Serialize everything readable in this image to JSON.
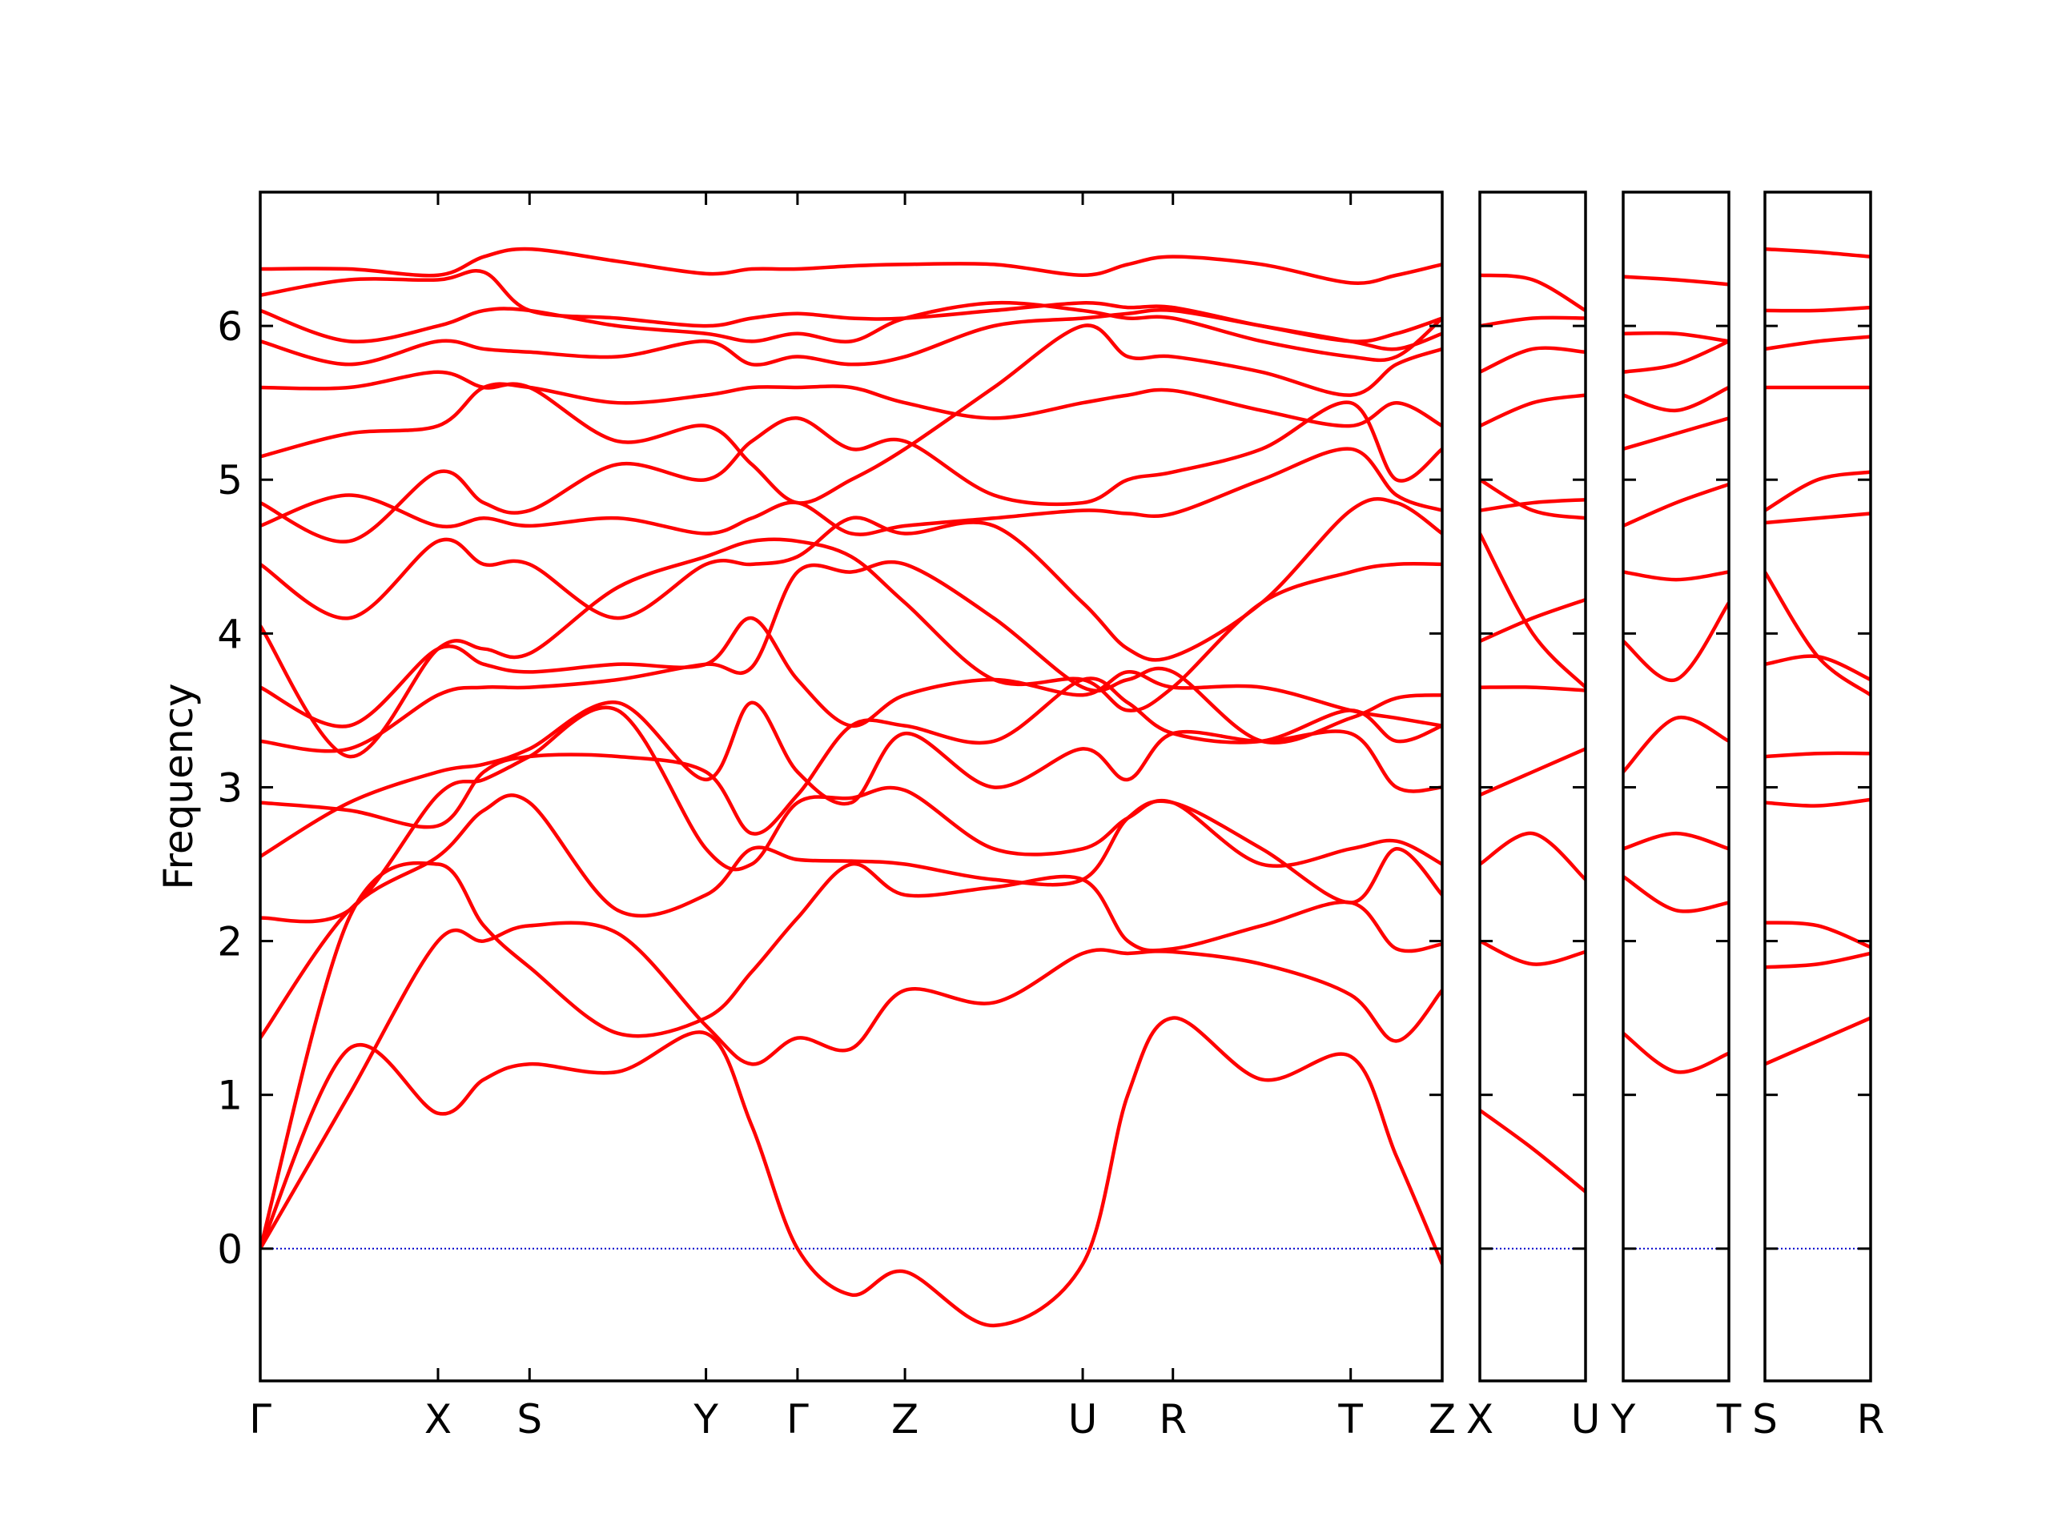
{
  "chart_data": [
    {
      "type": "line",
      "y_label": "Frequency",
      "ylim": [
        -0.86,
        6.87
      ],
      "yticks": [
        0,
        1,
        2,
        3,
        4,
        5,
        6
      ],
      "show_ytick_labels": true,
      "zero_line": 0,
      "zero_line_color": "#0000cc",
      "color": "#ff0000",
      "xlim": [
        0,
        8.91
      ],
      "xticks": [
        {
          "value": 0,
          "label": "Γ"
        },
        {
          "value": 1.34,
          "label": "X"
        },
        {
          "value": 2.03,
          "label": "S"
        },
        {
          "value": 3.36,
          "label": "Y"
        },
        {
          "value": 4.05,
          "label": "Γ"
        },
        {
          "value": 4.86,
          "label": "Z"
        },
        {
          "value": 6.2,
          "label": "U"
        },
        {
          "value": 6.88,
          "label": "R"
        },
        {
          "value": 8.22,
          "label": "T"
        },
        {
          "value": 8.91,
          "label": "Z"
        }
      ],
      "x": [
        0,
        0.67,
        1.34,
        1.685,
        2.03,
        2.695,
        3.36,
        3.705,
        4.05,
        4.455,
        4.86,
        5.53,
        6.2,
        6.54,
        6.88,
        7.55,
        8.22,
        8.565,
        8.91
      ],
      "series": [
        {
          "values": [
            0,
            1.3,
            0.88,
            1.1,
            1.2,
            1.15,
            1.4,
            0.8,
            0,
            -0.3,
            -0.15,
            -0.5,
            -0.1,
            1.0,
            1.5,
            1.1,
            1.25,
            0.6,
            -0.1
          ]
        },
        {
          "values": [
            0,
            1.0,
            2.0,
            2.0,
            2.1,
            2.05,
            1.45,
            1.2,
            1.37,
            1.3,
            1.68,
            1.6,
            1.92,
            1.92,
            1.93,
            1.85,
            1.65,
            1.35,
            1.68
          ]
        },
        {
          "values": [
            0,
            2.15,
            2.5,
            2.1,
            1.83,
            1.4,
            1.5,
            1.8,
            2.15,
            2.5,
            2.3,
            2.35,
            2.4,
            2.0,
            1.95,
            2.1,
            2.25,
            1.95,
            1.98
          ]
        },
        {
          "values": [
            1.37,
            2.2,
            2.55,
            2.85,
            2.9,
            2.2,
            2.3,
            2.6,
            2.53,
            2.52,
            2.5,
            2.4,
            2.4,
            2.8,
            2.9,
            2.6,
            2.25,
            2.6,
            2.3
          ]
        },
        {
          "values": [
            2.15,
            2.2,
            2.95,
            3.05,
            3.2,
            3.5,
            2.6,
            2.5,
            2.9,
            2.93,
            2.98,
            2.6,
            2.6,
            2.8,
            2.9,
            2.5,
            2.6,
            2.65,
            2.5
          ]
        },
        {
          "values": [
            2.55,
            2.9,
            3.1,
            3.15,
            3.25,
            3.55,
            3.05,
            3.55,
            3.1,
            2.9,
            3.35,
            3.0,
            3.25,
            3.05,
            3.35,
            3.3,
            3.35,
            3.0,
            3.0
          ]
        },
        {
          "values": [
            2.9,
            2.85,
            2.75,
            3.1,
            3.2,
            3.2,
            3.1,
            2.7,
            2.95,
            3.4,
            3.4,
            3.3,
            3.7,
            3.55,
            3.35,
            3.3,
            3.5,
            3.3,
            3.4
          ]
        },
        {
          "values": [
            3.3,
            3.25,
            3.6,
            3.65,
            3.65,
            3.7,
            3.8,
            3.78,
            4.4,
            4.4,
            4.45,
            4.1,
            3.65,
            3.7,
            3.75,
            3.3,
            3.45,
            3.58,
            3.6
          ]
        },
        {
          "values": [
            3.65,
            3.4,
            3.9,
            3.8,
            3.75,
            3.8,
            3.8,
            4.1,
            3.7,
            3.4,
            3.6,
            3.7,
            3.6,
            3.75,
            3.65,
            3.65,
            3.5,
            3.45,
            3.4
          ]
        },
        {
          "values": [
            4.05,
            3.2,
            3.9,
            3.9,
            3.87,
            4.3,
            4.5,
            4.6,
            4.6,
            4.5,
            4.2,
            3.7,
            3.7,
            3.5,
            3.65,
            4.2,
            4.4,
            4.45,
            4.45
          ]
        },
        {
          "values": [
            4.45,
            4.1,
            4.6,
            4.45,
            4.45,
            4.1,
            4.45,
            4.45,
            4.5,
            4.75,
            4.65,
            4.7,
            4.2,
            3.9,
            3.85,
            4.2,
            4.8,
            4.85,
            4.65
          ]
        },
        {
          "values": [
            4.7,
            4.9,
            4.7,
            4.75,
            4.7,
            4.75,
            4.65,
            4.75,
            4.85,
            4.65,
            4.7,
            4.75,
            4.8,
            4.78,
            4.78,
            5.0,
            5.2,
            4.9,
            4.8
          ]
        },
        {
          "values": [
            4.85,
            4.6,
            5.05,
            4.85,
            4.8,
            5.1,
            5.0,
            5.25,
            5.4,
            5.2,
            5.25,
            4.9,
            4.85,
            5.0,
            5.05,
            5.2,
            5.5,
            5.0,
            5.2
          ]
        },
        {
          "values": [
            5.15,
            5.3,
            5.35,
            5.6,
            5.6,
            5.5,
            5.55,
            5.6,
            5.6,
            5.6,
            5.5,
            5.4,
            5.5,
            5.55,
            5.58,
            5.45,
            5.35,
            5.5,
            5.35
          ]
        },
        {
          "values": [
            5.6,
            5.6,
            5.7,
            5.6,
            5.6,
            5.25,
            5.35,
            5.1,
            4.85,
            5.0,
            5.2,
            5.6,
            6.0,
            5.8,
            5.8,
            5.7,
            5.55,
            5.75,
            5.85
          ]
        },
        {
          "values": [
            5.9,
            5.75,
            5.9,
            5.85,
            5.83,
            5.8,
            5.9,
            5.75,
            5.8,
            5.75,
            5.8,
            6.0,
            6.05,
            6.08,
            6.1,
            6.0,
            5.9,
            5.85,
            5.95
          ]
        },
        {
          "values": [
            6.1,
            5.9,
            6.0,
            6.1,
            6.1,
            6.0,
            5.95,
            5.9,
            5.95,
            5.9,
            6.05,
            6.15,
            6.1,
            6.05,
            6.05,
            5.9,
            5.8,
            5.8,
            6.05
          ]
        },
        {
          "values": [
            6.2,
            6.3,
            6.3,
            6.35,
            6.1,
            6.05,
            6.0,
            6.05,
            6.08,
            6.05,
            6.05,
            6.1,
            6.15,
            6.12,
            6.12,
            6.0,
            5.9,
            5.95,
            6.05
          ]
        },
        {
          "values": [
            6.37,
            6.37,
            6.33,
            6.45,
            6.5,
            6.42,
            6.34,
            6.37,
            6.37,
            6.39,
            6.4,
            6.4,
            6.33,
            6.4,
            6.45,
            6.4,
            6.28,
            6.33,
            6.4
          ]
        }
      ]
    },
    {
      "type": "line",
      "ylim": [
        -0.86,
        6.87
      ],
      "yticks": [
        0,
        1,
        2,
        3,
        4,
        5,
        6
      ],
      "show_ytick_labels": false,
      "zero_line": 0,
      "zero_line_color": "#0000cc",
      "color": "#ff0000",
      "xlim": [
        0,
        0.8
      ],
      "xticks": [
        {
          "value": 0,
          "label": "X"
        },
        {
          "value": 0.8,
          "label": "U"
        }
      ],
      "x": [
        0,
        0.4,
        0.8
      ],
      "series": [
        {
          "values": [
            0.9,
            0.65,
            0.37
          ]
        },
        {
          "values": [
            2.0,
            1.85,
            1.93
          ]
        },
        {
          "values": [
            2.5,
            2.7,
            2.4
          ]
        },
        {
          "values": [
            2.95,
            3.1,
            3.25
          ]
        },
        {
          "values": [
            3.65,
            3.65,
            3.63
          ]
        },
        {
          "values": [
            3.95,
            4.1,
            4.22
          ]
        },
        {
          "values": [
            4.65,
            4.0,
            3.65
          ]
        },
        {
          "values": [
            4.8,
            4.85,
            4.87
          ]
        },
        {
          "values": [
            5.0,
            4.8,
            4.75
          ]
        },
        {
          "values": [
            5.35,
            5.5,
            5.55
          ]
        },
        {
          "values": [
            5.7,
            5.85,
            5.83
          ]
        },
        {
          "values": [
            6.0,
            6.05,
            6.05
          ]
        },
        {
          "values": [
            6.33,
            6.3,
            6.1
          ]
        }
      ]
    },
    {
      "type": "line",
      "ylim": [
        -0.86,
        6.87
      ],
      "yticks": [
        0,
        1,
        2,
        3,
        4,
        5,
        6
      ],
      "show_ytick_labels": false,
      "zero_line": 0,
      "zero_line_color": "#0000cc",
      "color": "#ff0000",
      "xlim": [
        0,
        0.8
      ],
      "xticks": [
        {
          "value": 0,
          "label": "Y"
        },
        {
          "value": 0.8,
          "label": "T"
        }
      ],
      "x": [
        0,
        0.4,
        0.8
      ],
      "series": [
        {
          "values": [
            1.4,
            1.15,
            1.27
          ]
        },
        {
          "values": [
            2.42,
            2.2,
            2.25
          ]
        },
        {
          "values": [
            2.6,
            2.7,
            2.6
          ]
        },
        {
          "values": [
            3.1,
            3.45,
            3.3
          ]
        },
        {
          "values": [
            3.95,
            3.7,
            4.2
          ]
        },
        {
          "values": [
            4.4,
            4.35,
            4.4
          ]
        },
        {
          "values": [
            4.7,
            4.85,
            4.97
          ]
        },
        {
          "values": [
            5.2,
            5.3,
            5.4
          ]
        },
        {
          "values": [
            5.55,
            5.45,
            5.6
          ]
        },
        {
          "values": [
            5.7,
            5.75,
            5.9
          ]
        },
        {
          "values": [
            5.95,
            5.95,
            5.9
          ]
        },
        {
          "values": [
            6.32,
            6.3,
            6.27
          ]
        }
      ]
    },
    {
      "type": "line",
      "ylim": [
        -0.86,
        6.87
      ],
      "yticks": [
        0,
        1,
        2,
        3,
        4,
        5,
        6
      ],
      "show_ytick_labels": false,
      "zero_line": 0,
      "zero_line_color": "#0000cc",
      "color": "#ff0000",
      "xlim": [
        0,
        0.8
      ],
      "xticks": [
        {
          "value": 0,
          "label": "S"
        },
        {
          "value": 0.8,
          "label": "R"
        }
      ],
      "x": [
        0,
        0.4,
        0.8
      ],
      "series": [
        {
          "values": [
            1.2,
            1.35,
            1.5
          ]
        },
        {
          "values": [
            1.83,
            1.85,
            1.92
          ]
        },
        {
          "values": [
            2.12,
            2.1,
            1.96
          ]
        },
        {
          "values": [
            2.9,
            2.88,
            2.92
          ]
        },
        {
          "values": [
            3.2,
            3.22,
            3.22
          ]
        },
        {
          "values": [
            3.8,
            3.85,
            3.7
          ]
        },
        {
          "values": [
            4.4,
            3.85,
            3.6
          ]
        },
        {
          "values": [
            4.72,
            4.75,
            4.78
          ]
        },
        {
          "values": [
            4.8,
            5.0,
            5.05
          ]
        },
        {
          "values": [
            5.6,
            5.6,
            5.6
          ]
        },
        {
          "values": [
            5.85,
            5.9,
            5.93
          ]
        },
        {
          "values": [
            6.1,
            6.1,
            6.12
          ]
        },
        {
          "values": [
            6.5,
            6.48,
            6.45
          ]
        }
      ]
    }
  ]
}
